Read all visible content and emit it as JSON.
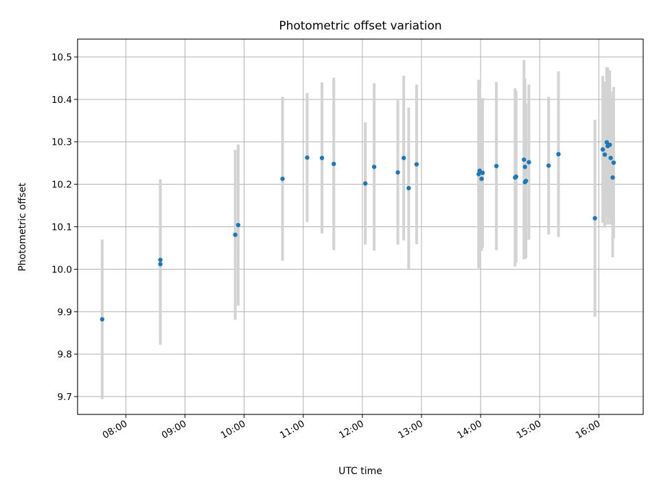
{
  "chart_data": {
    "type": "scatter",
    "title": "Photometric offset variation",
    "xlabel": "UTC time",
    "ylabel": "Photometric offset",
    "x_format": "HH:MM",
    "xlim": [
      "07:11",
      "16:45"
    ],
    "ylim": [
      9.658,
      10.542
    ],
    "grid": true,
    "x_ticks": [
      "08:00",
      "09:00",
      "10:00",
      "11:00",
      "12:00",
      "13:00",
      "14:00",
      "15:00",
      "16:00"
    ],
    "y_ticks": [
      "9.7",
      "9.8",
      "9.9",
      "10.0",
      "10.1",
      "10.2",
      "10.3",
      "10.4",
      "10.5"
    ],
    "colors": {
      "point": "#1f77b4",
      "errorbar": "#d3d3d3",
      "grid": "#b0b0b0"
    },
    "points": [
      {
        "x": "07:36",
        "y": 9.882,
        "err": 0.188
      },
      {
        "x": "08:35",
        "y": 10.012,
        "err": 0.19
      },
      {
        "x": "08:35",
        "y": 10.022,
        "err": 0.19
      },
      {
        "x": "09:51",
        "y": 10.081,
        "err": 0.2
      },
      {
        "x": "09:54",
        "y": 10.104,
        "err": 0.19
      },
      {
        "x": "10:39",
        "y": 10.213,
        "err": 0.193
      },
      {
        "x": "11:04",
        "y": 10.263,
        "err": 0.152
      },
      {
        "x": "11:19",
        "y": 10.262,
        "err": 0.178
      },
      {
        "x": "11:31",
        "y": 10.248,
        "err": 0.203
      },
      {
        "x": "12:03",
        "y": 10.202,
        "err": 0.144
      },
      {
        "x": "12:12",
        "y": 10.241,
        "err": 0.197
      },
      {
        "x": "12:36",
        "y": 10.228,
        "err": 0.17
      },
      {
        "x": "12:42",
        "y": 10.262,
        "err": 0.194
      },
      {
        "x": "12:47",
        "y": 10.191,
        "err": 0.19
      },
      {
        "x": "12:55",
        "y": 10.247,
        "err": 0.188
      },
      {
        "x": "13:58",
        "y": 10.224,
        "err": 0.222
      },
      {
        "x": "13:59",
        "y": 10.232,
        "err": 0.195
      },
      {
        "x": "14:01",
        "y": 10.213,
        "err": 0.17
      },
      {
        "x": "14:02",
        "y": 10.227,
        "err": 0.176
      },
      {
        "x": "14:16",
        "y": 10.243,
        "err": 0.198
      },
      {
        "x": "14:35",
        "y": 10.216,
        "err": 0.21
      },
      {
        "x": "14:36",
        "y": 10.218,
        "err": 0.202
      },
      {
        "x": "14:44",
        "y": 10.258,
        "err": 0.235
      },
      {
        "x": "14:45",
        "y": 10.241,
        "err": 0.208
      },
      {
        "x": "14:45",
        "y": 10.205,
        "err": 0.18
      },
      {
        "x": "14:46",
        "y": 10.208,
        "err": 0.182
      },
      {
        "x": "14:49",
        "y": 10.252,
        "err": 0.183
      },
      {
        "x": "15:09",
        "y": 10.244,
        "err": 0.162
      },
      {
        "x": "15:19",
        "y": 10.271,
        "err": 0.195
      },
      {
        "x": "15:56",
        "y": 10.12,
        "err": 0.232
      },
      {
        "x": "16:04",
        "y": 10.282,
        "err": 0.173
      },
      {
        "x": "16:06",
        "y": 10.27,
        "err": 0.172
      },
      {
        "x": "16:08",
        "y": 10.299,
        "err": 0.177
      },
      {
        "x": "16:09",
        "y": 10.29,
        "err": 0.185
      },
      {
        "x": "16:11",
        "y": 10.293,
        "err": 0.175
      },
      {
        "x": "16:12",
        "y": 10.262,
        "err": 0.157
      },
      {
        "x": "16:14",
        "y": 10.216,
        "err": 0.188
      },
      {
        "x": "16:15",
        "y": 10.251,
        "err": 0.178
      }
    ]
  }
}
